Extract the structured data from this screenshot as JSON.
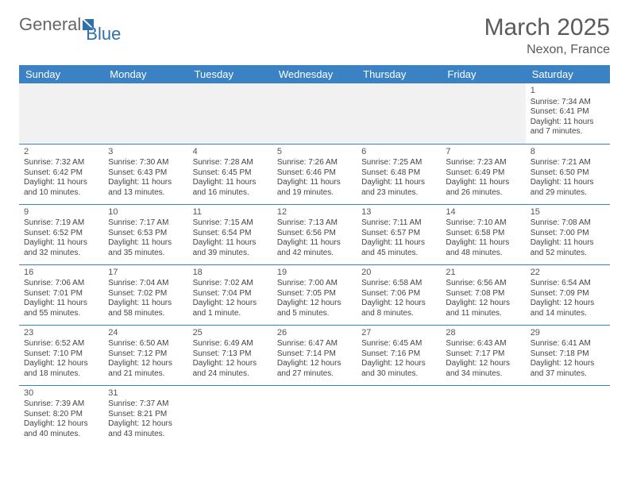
{
  "logo": {
    "text1": "General",
    "text2": "Blue"
  },
  "header": {
    "month": "March 2025",
    "location": "Nexon, France"
  },
  "colors": {
    "header_bg": "#3b82c4",
    "header_fg": "#ffffff",
    "border": "#3b82c4",
    "blank_bg": "#f1f1f1",
    "logo_blue": "#2f6fad"
  },
  "weekdays": [
    "Sunday",
    "Monday",
    "Tuesday",
    "Wednesday",
    "Thursday",
    "Friday",
    "Saturday"
  ],
  "weeks": [
    [
      null,
      null,
      null,
      null,
      null,
      null,
      {
        "n": "1",
        "sr": "Sunrise: 7:34 AM",
        "ss": "Sunset: 6:41 PM",
        "dl": "Daylight: 11 hours and 7 minutes."
      }
    ],
    [
      {
        "n": "2",
        "sr": "Sunrise: 7:32 AM",
        "ss": "Sunset: 6:42 PM",
        "dl": "Daylight: 11 hours and 10 minutes."
      },
      {
        "n": "3",
        "sr": "Sunrise: 7:30 AM",
        "ss": "Sunset: 6:43 PM",
        "dl": "Daylight: 11 hours and 13 minutes."
      },
      {
        "n": "4",
        "sr": "Sunrise: 7:28 AM",
        "ss": "Sunset: 6:45 PM",
        "dl": "Daylight: 11 hours and 16 minutes."
      },
      {
        "n": "5",
        "sr": "Sunrise: 7:26 AM",
        "ss": "Sunset: 6:46 PM",
        "dl": "Daylight: 11 hours and 19 minutes."
      },
      {
        "n": "6",
        "sr": "Sunrise: 7:25 AM",
        "ss": "Sunset: 6:48 PM",
        "dl": "Daylight: 11 hours and 23 minutes."
      },
      {
        "n": "7",
        "sr": "Sunrise: 7:23 AM",
        "ss": "Sunset: 6:49 PM",
        "dl": "Daylight: 11 hours and 26 minutes."
      },
      {
        "n": "8",
        "sr": "Sunrise: 7:21 AM",
        "ss": "Sunset: 6:50 PM",
        "dl": "Daylight: 11 hours and 29 minutes."
      }
    ],
    [
      {
        "n": "9",
        "sr": "Sunrise: 7:19 AM",
        "ss": "Sunset: 6:52 PM",
        "dl": "Daylight: 11 hours and 32 minutes."
      },
      {
        "n": "10",
        "sr": "Sunrise: 7:17 AM",
        "ss": "Sunset: 6:53 PM",
        "dl": "Daylight: 11 hours and 35 minutes."
      },
      {
        "n": "11",
        "sr": "Sunrise: 7:15 AM",
        "ss": "Sunset: 6:54 PM",
        "dl": "Daylight: 11 hours and 39 minutes."
      },
      {
        "n": "12",
        "sr": "Sunrise: 7:13 AM",
        "ss": "Sunset: 6:56 PM",
        "dl": "Daylight: 11 hours and 42 minutes."
      },
      {
        "n": "13",
        "sr": "Sunrise: 7:11 AM",
        "ss": "Sunset: 6:57 PM",
        "dl": "Daylight: 11 hours and 45 minutes."
      },
      {
        "n": "14",
        "sr": "Sunrise: 7:10 AM",
        "ss": "Sunset: 6:58 PM",
        "dl": "Daylight: 11 hours and 48 minutes."
      },
      {
        "n": "15",
        "sr": "Sunrise: 7:08 AM",
        "ss": "Sunset: 7:00 PM",
        "dl": "Daylight: 11 hours and 52 minutes."
      }
    ],
    [
      {
        "n": "16",
        "sr": "Sunrise: 7:06 AM",
        "ss": "Sunset: 7:01 PM",
        "dl": "Daylight: 11 hours and 55 minutes."
      },
      {
        "n": "17",
        "sr": "Sunrise: 7:04 AM",
        "ss": "Sunset: 7:02 PM",
        "dl": "Daylight: 11 hours and 58 minutes."
      },
      {
        "n": "18",
        "sr": "Sunrise: 7:02 AM",
        "ss": "Sunset: 7:04 PM",
        "dl": "Daylight: 12 hours and 1 minute."
      },
      {
        "n": "19",
        "sr": "Sunrise: 7:00 AM",
        "ss": "Sunset: 7:05 PM",
        "dl": "Daylight: 12 hours and 5 minutes."
      },
      {
        "n": "20",
        "sr": "Sunrise: 6:58 AM",
        "ss": "Sunset: 7:06 PM",
        "dl": "Daylight: 12 hours and 8 minutes."
      },
      {
        "n": "21",
        "sr": "Sunrise: 6:56 AM",
        "ss": "Sunset: 7:08 PM",
        "dl": "Daylight: 12 hours and 11 minutes."
      },
      {
        "n": "22",
        "sr": "Sunrise: 6:54 AM",
        "ss": "Sunset: 7:09 PM",
        "dl": "Daylight: 12 hours and 14 minutes."
      }
    ],
    [
      {
        "n": "23",
        "sr": "Sunrise: 6:52 AM",
        "ss": "Sunset: 7:10 PM",
        "dl": "Daylight: 12 hours and 18 minutes."
      },
      {
        "n": "24",
        "sr": "Sunrise: 6:50 AM",
        "ss": "Sunset: 7:12 PM",
        "dl": "Daylight: 12 hours and 21 minutes."
      },
      {
        "n": "25",
        "sr": "Sunrise: 6:49 AM",
        "ss": "Sunset: 7:13 PM",
        "dl": "Daylight: 12 hours and 24 minutes."
      },
      {
        "n": "26",
        "sr": "Sunrise: 6:47 AM",
        "ss": "Sunset: 7:14 PM",
        "dl": "Daylight: 12 hours and 27 minutes."
      },
      {
        "n": "27",
        "sr": "Sunrise: 6:45 AM",
        "ss": "Sunset: 7:16 PM",
        "dl": "Daylight: 12 hours and 30 minutes."
      },
      {
        "n": "28",
        "sr": "Sunrise: 6:43 AM",
        "ss": "Sunset: 7:17 PM",
        "dl": "Daylight: 12 hours and 34 minutes."
      },
      {
        "n": "29",
        "sr": "Sunrise: 6:41 AM",
        "ss": "Sunset: 7:18 PM",
        "dl": "Daylight: 12 hours and 37 minutes."
      }
    ],
    [
      {
        "n": "30",
        "sr": "Sunrise: 7:39 AM",
        "ss": "Sunset: 8:20 PM",
        "dl": "Daylight: 12 hours and 40 minutes."
      },
      {
        "n": "31",
        "sr": "Sunrise: 7:37 AM",
        "ss": "Sunset: 8:21 PM",
        "dl": "Daylight: 12 hours and 43 minutes."
      },
      null,
      null,
      null,
      null,
      null
    ]
  ]
}
